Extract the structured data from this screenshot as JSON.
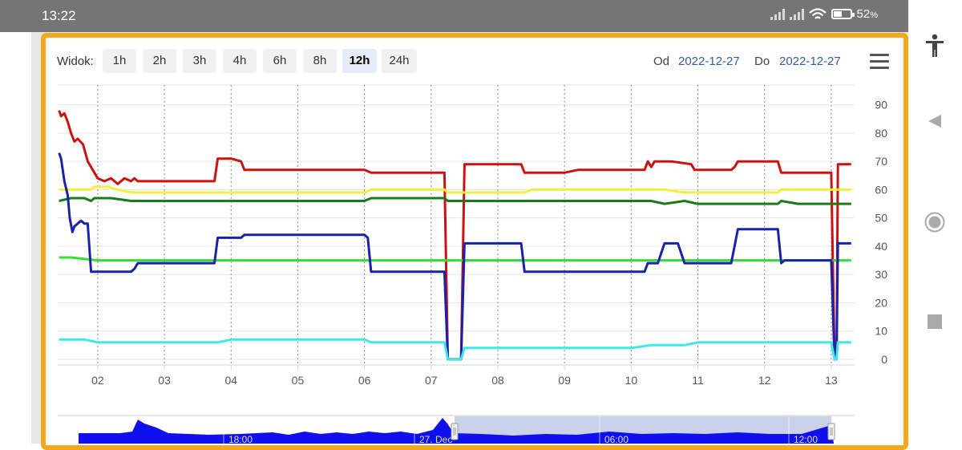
{
  "status_bar": {
    "time": "13:22",
    "battery": "52",
    "battery_unit": "%",
    "battery_level": 0.52,
    "icons": [
      "signal-icon",
      "signal-icon",
      "wifi-icon",
      "battery-icon"
    ]
  },
  "nav_bar": {
    "icons": [
      "accessibility-icon",
      "back-icon",
      "home-icon",
      "recents-icon"
    ]
  },
  "toolbar": {
    "view_label": "Widok:",
    "ranges": [
      "1h",
      "2h",
      "3h",
      "4h",
      "6h",
      "8h",
      "12h",
      "24h"
    ],
    "active_range": "12h",
    "from_label": "Od",
    "from_date": "2022-12-27",
    "to_label": "Do",
    "to_date": "2022-12-27",
    "menu_icon": "hamburger-icon"
  },
  "chart_data": {
    "type": "line",
    "title": "",
    "xlabel": "",
    "ylabel": "",
    "x_ticks": [
      "02",
      "03",
      "04",
      "05",
      "06",
      "07",
      "08",
      "09",
      "10",
      "11",
      "12",
      "13"
    ],
    "xlim": [
      1.4,
      13.35
    ],
    "ylim": [
      -2,
      97
    ],
    "y_ticks": [
      0,
      10,
      20,
      30,
      40,
      50,
      60,
      70,
      80,
      90
    ],
    "grid": "vertical dashed, horizontal solid",
    "legend": "none",
    "series": [
      {
        "color": "#cc1111",
        "x": [
          1.42,
          1.45,
          1.5,
          1.55,
          1.6,
          1.65,
          1.7,
          1.78,
          1.85,
          1.9,
          1.95,
          2.0,
          2.1,
          2.2,
          2.3,
          2.4,
          2.5,
          2.55,
          2.6,
          2.7,
          3.0,
          3.4,
          3.75,
          3.8,
          3.85,
          4.0,
          4.15,
          4.2,
          4.5,
          5.0,
          5.5,
          6.0,
          6.1,
          6.5,
          7.0,
          7.2,
          7.25,
          7.3,
          7.4,
          7.45,
          7.5,
          8.0,
          8.35,
          8.4,
          8.8,
          9.0,
          9.2,
          9.3,
          9.8,
          10.0,
          10.2,
          10.25,
          10.3,
          10.35,
          10.5,
          10.6,
          10.9,
          10.95,
          11.0,
          11.5,
          11.55,
          11.6,
          12.0,
          12.2,
          12.25,
          12.3,
          12.6,
          13.0,
          13.05,
          13.08,
          13.1,
          13.3
        ],
        "y": [
          88,
          86,
          87,
          84,
          80,
          77,
          78,
          76,
          70,
          68,
          66,
          64,
          63,
          64,
          62,
          64,
          63,
          64,
          63,
          63,
          63,
          63,
          63,
          71,
          71,
          71,
          70,
          67,
          67,
          67,
          67,
          67,
          66,
          66,
          66,
          66,
          0,
          0,
          0,
          0,
          69,
          69,
          69,
          66,
          66,
          66,
          67,
          67,
          67,
          67,
          67,
          70,
          68,
          70,
          70,
          70,
          69,
          67,
          67,
          67,
          68,
          70,
          70,
          70,
          66,
          66,
          66,
          66,
          0,
          0,
          69,
          69
        ]
      },
      {
        "color": "#f5ef3b",
        "x": [
          1.42,
          1.6,
          1.9,
          1.95,
          2.0,
          2.15,
          2.3,
          2.5,
          3.0,
          3.5,
          4.0,
          4.5,
          5.0,
          5.5,
          6.0,
          6.1,
          6.5,
          7.0,
          7.2,
          7.25,
          7.5,
          8.0,
          8.4,
          8.5,
          9.0,
          9.5,
          10.0,
          10.5,
          10.8,
          11.0,
          11.5,
          12.0,
          12.2,
          12.25,
          12.5,
          13.0,
          13.3
        ],
        "y": [
          60,
          60,
          60,
          61,
          61,
          61,
          60,
          59,
          59,
          59,
          59,
          59,
          59,
          59,
          59,
          60,
          60,
          60,
          60,
          59,
          59,
          59,
          59,
          60,
          60,
          60,
          60,
          60,
          59,
          59,
          59,
          59,
          59,
          60,
          60,
          60,
          60
        ]
      },
      {
        "color": "#1a7a1a",
        "x": [
          1.42,
          1.6,
          1.8,
          1.9,
          1.95,
          2.0,
          2.2,
          2.5,
          3.0,
          3.5,
          4.0,
          4.5,
          5.0,
          5.5,
          6.0,
          6.1,
          6.5,
          7.0,
          7.2,
          7.25,
          7.5,
          8.0,
          8.4,
          8.5,
          9.0,
          9.5,
          10.0,
          10.2,
          10.3,
          10.5,
          10.8,
          11.0,
          11.5,
          12.0,
          12.2,
          12.25,
          12.5,
          13.0,
          13.3
        ],
        "y": [
          56,
          57,
          57,
          56,
          57,
          57,
          57,
          56,
          56,
          56,
          56,
          56,
          56,
          56,
          56,
          57,
          57,
          57,
          57,
          56,
          56,
          56,
          56,
          56,
          56,
          56,
          56,
          56,
          56,
          55,
          56,
          55,
          55,
          55,
          55,
          56,
          55,
          55,
          55
        ]
      },
      {
        "color": "#33dd33",
        "x": [
          1.42,
          1.6,
          2.0,
          2.5,
          3.0,
          3.5,
          4.0,
          4.5,
          5.0,
          5.5,
          6.0,
          6.5,
          7.0,
          7.2,
          7.3,
          7.5,
          8.0,
          8.5,
          9.0,
          9.5,
          10.0,
          10.5,
          11.0,
          11.5,
          12.0,
          12.5,
          13.0,
          13.3
        ],
        "y": [
          36,
          36,
          35,
          35,
          35,
          35,
          35,
          35,
          35,
          35,
          35,
          35,
          35,
          35,
          35,
          35,
          35,
          35,
          35,
          35,
          35,
          35,
          35,
          35,
          35,
          35,
          35,
          35
        ]
      },
      {
        "color": "#1a22aa",
        "x": [
          1.42,
          1.45,
          1.5,
          1.55,
          1.58,
          1.62,
          1.65,
          1.7,
          1.75,
          1.8,
          1.85,
          1.9,
          1.95,
          2.0,
          2.3,
          2.5,
          2.55,
          2.6,
          3.0,
          3.5,
          3.75,
          3.8,
          4.0,
          4.15,
          4.2,
          4.5,
          5.0,
          5.5,
          6.0,
          6.05,
          6.1,
          6.5,
          7.0,
          7.2,
          7.25,
          7.3,
          7.45,
          7.5,
          8.0,
          8.35,
          8.4,
          8.8,
          9.0,
          9.5,
          10.0,
          10.2,
          10.25,
          10.4,
          10.5,
          10.7,
          10.8,
          10.9,
          11.0,
          11.5,
          11.55,
          11.6,
          12.0,
          12.2,
          12.25,
          12.3,
          12.5,
          13.0,
          13.05,
          13.08,
          13.1,
          13.3
        ],
        "y": [
          73,
          71,
          63,
          58,
          50,
          45,
          47,
          48,
          49,
          48,
          48,
          31,
          31,
          31,
          31,
          31,
          32,
          34,
          34,
          34,
          34,
          43,
          43,
          43,
          44,
          44,
          44,
          44,
          44,
          43,
          31,
          31,
          31,
          31,
          0,
          0,
          0,
          41,
          41,
          41,
          31,
          31,
          31,
          31,
          31,
          31,
          34,
          34,
          41,
          41,
          34,
          34,
          34,
          34,
          40,
          46,
          46,
          46,
          34,
          35,
          35,
          35,
          0,
          0,
          41,
          41
        ]
      },
      {
        "color": "#3ee8e8",
        "x": [
          1.42,
          1.6,
          1.8,
          2.0,
          2.3,
          2.5,
          3.0,
          3.5,
          3.8,
          4.0,
          4.5,
          5.0,
          5.5,
          6.0,
          6.1,
          6.5,
          7.0,
          7.2,
          7.25,
          7.3,
          7.4,
          7.45,
          7.5,
          8.0,
          8.4,
          8.5,
          9.0,
          9.5,
          10.0,
          10.3,
          10.5,
          10.8,
          11.0,
          11.5,
          12.0,
          12.5,
          13.0,
          13.05,
          13.08,
          13.1,
          13.3
        ],
        "y": [
          7,
          7,
          7,
          6,
          6,
          6,
          6,
          6,
          6,
          7,
          7,
          7,
          7,
          7,
          6,
          6,
          6,
          6,
          0,
          0,
          0,
          0,
          4,
          4,
          4,
          4,
          4,
          4,
          4,
          5,
          5,
          5,
          6,
          6,
          6,
          6,
          6,
          0,
          0,
          6,
          6
        ]
      }
    ],
    "navigator": {
      "labels": [
        "18:00",
        "27. Dec",
        "06:00",
        "12:00"
      ],
      "series_color": "#1010ee",
      "mask_color": "#c9d2ea"
    }
  }
}
